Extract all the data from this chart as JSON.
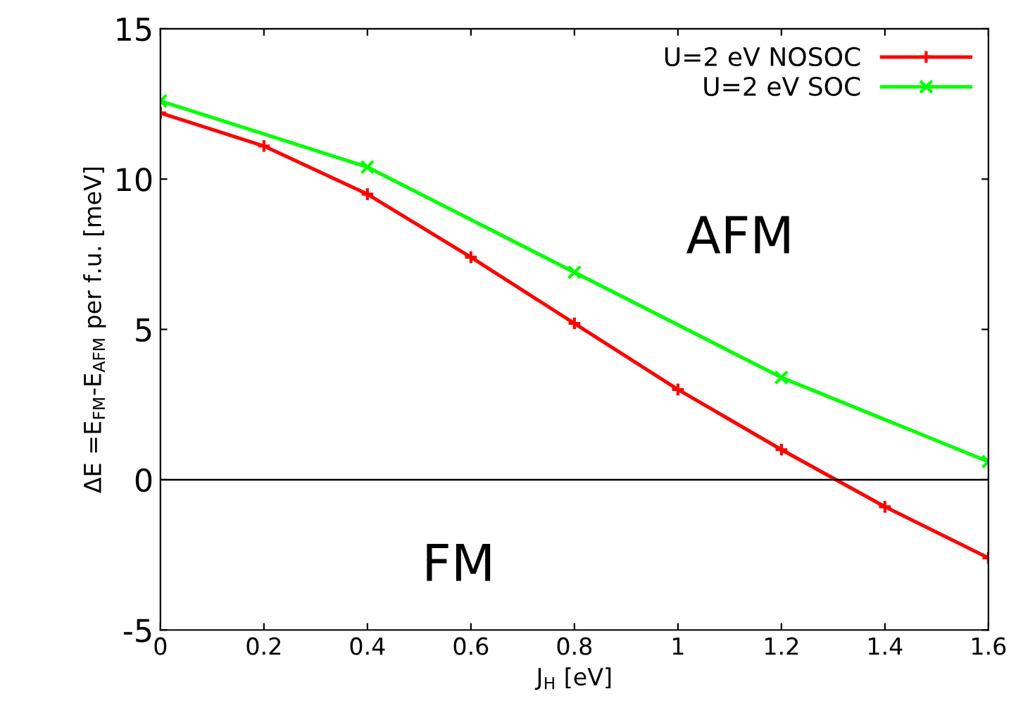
{
  "chart_data": {
    "type": "line",
    "xlabel": "J$_{H}$ [eV]",
    "ylabel": "ΔE =E$_{FM}$-E$_{AFM}$ per f.u. [meV]",
    "xlim": [
      0,
      1.6
    ],
    "xticks": [
      0,
      0.2,
      0.4,
      0.6,
      0.8,
      1,
      1.2,
      1.4,
      1.6
    ],
    "ylim": [
      -5,
      15
    ],
    "yticks": [
      -5,
      0,
      5,
      10,
      15
    ],
    "grid": false,
    "legend": "top right",
    "series": [
      {
        "name": "U=2 eV NOSOC",
        "color": "#ff0000",
        "marker": "plus",
        "x": [
          0,
          0.2,
          0.4,
          0.6,
          0.8,
          1.0,
          1.2,
          1.4,
          1.6
        ],
        "values": [
          12.2,
          11.1,
          9.5,
          7.4,
          5.2,
          3.0,
          1.0,
          -0.9,
          -2.6
        ]
      },
      {
        "name": "U=2 eV SOC",
        "color": "#00ff00",
        "marker": "cross",
        "x": [
          0,
          0.4,
          0.8,
          1.2,
          1.6
        ],
        "values": [
          12.6,
          10.4,
          6.9,
          3.4,
          0.6
        ]
      }
    ],
    "ref_lines": [
      {
        "axis": "y",
        "value": 0,
        "color": "#000000"
      }
    ],
    "annotations": [
      "AFM",
      "FM"
    ]
  }
}
